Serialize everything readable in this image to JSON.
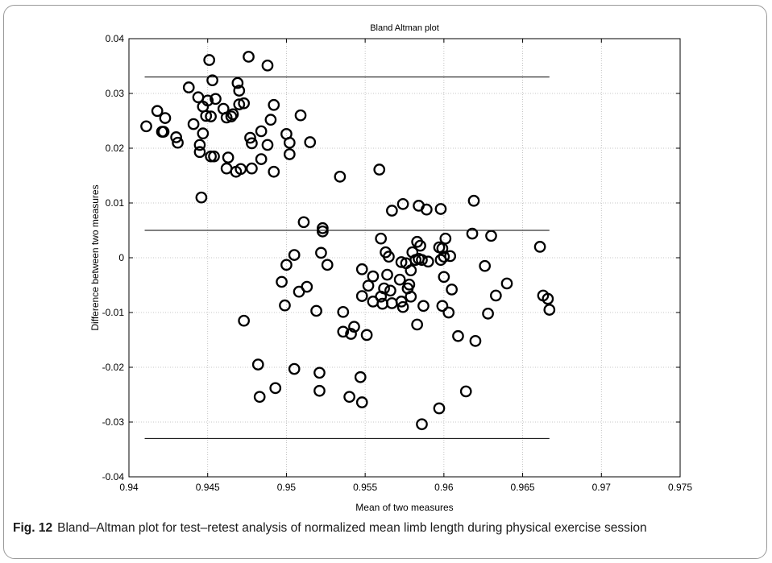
{
  "caption": {
    "label": "Fig. 12",
    "text": "Bland–Altman plot for test–retest analysis of normalized mean limb length during physical exercise session"
  },
  "chart_data": {
    "type": "scatter",
    "title": "Bland Altman plot",
    "xlabel": "Mean of two measures",
    "ylabel": "Difference between two measures",
    "xlim": [
      0.94,
      0.975
    ],
    "ylim": [
      -0.04,
      0.04
    ],
    "xticks": [
      "0.94",
      "0.945",
      "0.95",
      "0.955",
      "0.96",
      "0.965",
      "0.97",
      "0.975"
    ],
    "yticks": [
      "-0.04",
      "-0.03",
      "-0.02",
      "-0.01",
      "0",
      "0.01",
      "0.02",
      "0.03",
      "0.04"
    ],
    "grid": true,
    "marker": "open-circle",
    "reference_lines": [
      {
        "y": 0.033,
        "x_range": [
          0.941,
          0.9667
        ]
      },
      {
        "y": 0.005,
        "x_range": [
          0.941,
          0.9667
        ]
      },
      {
        "y": -0.033,
        "x_range": [
          0.941,
          0.9667
        ]
      }
    ],
    "points": [
      [
        0.9411,
        0.024
      ],
      [
        0.9418,
        0.0268
      ],
      [
        0.9421,
        0.023
      ],
      [
        0.9422,
        0.023
      ],
      [
        0.9423,
        0.0255
      ],
      [
        0.943,
        0.022
      ],
      [
        0.9431,
        0.021
      ],
      [
        0.9438,
        0.0311
      ],
      [
        0.9441,
        0.0244
      ],
      [
        0.9444,
        0.0293
      ],
      [
        0.9445,
        0.0206
      ],
      [
        0.9445,
        0.0193
      ],
      [
        0.9446,
        0.011
      ],
      [
        0.9447,
        0.0276
      ],
      [
        0.9447,
        0.0227
      ],
      [
        0.9449,
        0.0259
      ],
      [
        0.945,
        0.0287
      ],
      [
        0.9451,
        0.0361
      ],
      [
        0.9452,
        0.0185
      ],
      [
        0.9452,
        0.0258
      ],
      [
        0.9453,
        0.0324
      ],
      [
        0.9454,
        0.0185
      ],
      [
        0.9455,
        0.029
      ],
      [
        0.946,
        0.0272
      ],
      [
        0.9462,
        0.0256
      ],
      [
        0.9462,
        0.0163
      ],
      [
        0.9463,
        0.0183
      ],
      [
        0.9465,
        0.0258
      ],
      [
        0.9466,
        0.0262
      ],
      [
        0.9468,
        0.0157
      ],
      [
        0.9469,
        0.0319
      ],
      [
        0.947,
        0.0305
      ],
      [
        0.947,
        0.028
      ],
      [
        0.9471,
        0.0162
      ],
      [
        0.9473,
        0.0282
      ],
      [
        0.9473,
        -0.0115
      ],
      [
        0.9476,
        0.0367
      ],
      [
        0.9477,
        0.0219
      ],
      [
        0.9478,
        0.0209
      ],
      [
        0.9478,
        0.0163
      ],
      [
        0.9482,
        -0.0195
      ],
      [
        0.9483,
        -0.0254
      ],
      [
        0.9484,
        0.018
      ],
      [
        0.9484,
        0.0231
      ],
      [
        0.9488,
        0.0351
      ],
      [
        0.9488,
        0.0206
      ],
      [
        0.949,
        0.0252
      ],
      [
        0.9492,
        0.0279
      ],
      [
        0.9492,
        0.0157
      ],
      [
        0.9493,
        -0.0238
      ],
      [
        0.9497,
        -0.0044
      ],
      [
        0.9499,
        -0.0087
      ],
      [
        0.95,
        0.0226
      ],
      [
        0.95,
        -0.0013
      ],
      [
        0.9502,
        0.021
      ],
      [
        0.9502,
        0.0189
      ],
      [
        0.9505,
        0.0005
      ],
      [
        0.9505,
        -0.0203
      ],
      [
        0.9508,
        -0.0062
      ],
      [
        0.9509,
        0.026
      ],
      [
        0.9511,
        0.0065
      ],
      [
        0.9513,
        -0.0053
      ],
      [
        0.9515,
        0.0211
      ],
      [
        0.9519,
        -0.0097
      ],
      [
        0.9521,
        -0.0243
      ],
      [
        0.9521,
        -0.021
      ],
      [
        0.9522,
        0.0009
      ],
      [
        0.9523,
        0.0054
      ],
      [
        0.9523,
        0.0048
      ],
      [
        0.9526,
        -0.0013
      ],
      [
        0.9534,
        0.0148
      ],
      [
        0.9536,
        -0.0135
      ],
      [
        0.9536,
        -0.0099
      ],
      [
        0.954,
        -0.0254
      ],
      [
        0.9541,
        -0.0139
      ],
      [
        0.9543,
        -0.0126
      ],
      [
        0.9547,
        -0.0218
      ],
      [
        0.9548,
        -0.007
      ],
      [
        0.9548,
        -0.0264
      ],
      [
        0.9548,
        -0.0021
      ],
      [
        0.9551,
        -0.0141
      ],
      [
        0.9552,
        -0.0051
      ],
      [
        0.9555,
        -0.008
      ],
      [
        0.9555,
        -0.0034
      ],
      [
        0.9559,
        0.0161
      ],
      [
        0.956,
        0.0035
      ],
      [
        0.956,
        -0.0071
      ],
      [
        0.9561,
        -0.0084
      ],
      [
        0.9562,
        -0.0056
      ],
      [
        0.9563,
        0.001
      ],
      [
        0.9564,
        -0.0031
      ],
      [
        0.9565,
        0.0002
      ],
      [
        0.9566,
        -0.006
      ],
      [
        0.9567,
        0.0086
      ],
      [
        0.9567,
        -0.0083
      ],
      [
        0.9572,
        -0.004
      ],
      [
        0.9573,
        -0.008
      ],
      [
        0.9573,
        -0.0008
      ],
      [
        0.9574,
        0.0098
      ],
      [
        0.9574,
        -0.009
      ],
      [
        0.9576,
        -0.001
      ],
      [
        0.9577,
        -0.0056
      ],
      [
        0.9578,
        -0.0049
      ],
      [
        0.9579,
        -0.0023
      ],
      [
        0.9579,
        -0.0071
      ],
      [
        0.958,
        0.001
      ],
      [
        0.9582,
        -0.0004
      ],
      [
        0.9583,
        0.0029
      ],
      [
        0.9583,
        -0.0122
      ],
      [
        0.9584,
        0.0095
      ],
      [
        0.9584,
        -0.0002
      ],
      [
        0.9585,
        0.0022
      ],
      [
        0.9586,
        -0.0304
      ],
      [
        0.9586,
        -0.0004
      ],
      [
        0.9587,
        -0.0088
      ],
      [
        0.9589,
        0.0088
      ],
      [
        0.959,
        -0.0007
      ],
      [
        0.9597,
        0.0019
      ],
      [
        0.9597,
        -0.0275
      ],
      [
        0.9598,
        0.0089
      ],
      [
        0.9598,
        -0.0004
      ],
      [
        0.9599,
        0.0017
      ],
      [
        0.9599,
        -0.0088
      ],
      [
        0.96,
        0.0002
      ],
      [
        0.96,
        -0.0035
      ],
      [
        0.9601,
        0.0035
      ],
      [
        0.9603,
        -0.01
      ],
      [
        0.9604,
        0.0003
      ],
      [
        0.9605,
        -0.0058
      ],
      [
        0.9609,
        -0.0143
      ],
      [
        0.9614,
        -0.0244
      ],
      [
        0.9618,
        0.0044
      ],
      [
        0.9619,
        0.0104
      ],
      [
        0.962,
        -0.0152
      ],
      [
        0.9626,
        -0.0015
      ],
      [
        0.9628,
        -0.0102
      ],
      [
        0.963,
        0.004
      ],
      [
        0.9633,
        -0.0069
      ],
      [
        0.964,
        -0.0047
      ],
      [
        0.9661,
        0.002
      ],
      [
        0.9663,
        -0.0069
      ],
      [
        0.9666,
        -0.0075
      ],
      [
        0.9667,
        -0.0095
      ]
    ]
  }
}
